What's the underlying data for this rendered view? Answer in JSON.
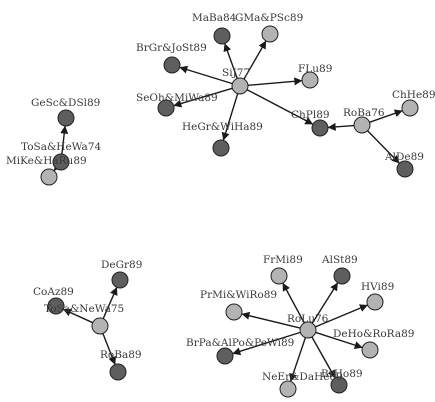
{
  "colors": {
    "light_node": "#b3b3b3",
    "dark_node": "#5e5e5e",
    "edge": "#1a1a1a",
    "label": "#3a3a3a",
    "background": "#ffffff"
  },
  "nodes": [
    {
      "id": "n1",
      "label": "SiJ77",
      "shade": "light"
    },
    {
      "id": "n2",
      "label": "MaBa84",
      "shade": "dark"
    },
    {
      "id": "n3",
      "label": "GMa&PSc89",
      "shade": "light"
    },
    {
      "id": "n4",
      "label": "BrGr&JoSt89",
      "shade": "dark"
    },
    {
      "id": "n5",
      "label": "SeOh&MiWa89",
      "shade": "dark"
    },
    {
      "id": "n6",
      "label": "HeGr&WiHa89",
      "shade": "dark"
    },
    {
      "id": "n7",
      "label": "FLu89",
      "shade": "light"
    },
    {
      "id": "n8",
      "label": "ChPl89",
      "shade": "dark"
    },
    {
      "id": "n9",
      "label": "RoBa76",
      "shade": "light"
    },
    {
      "id": "n10",
      "label": "ChHe89",
      "shade": "light"
    },
    {
      "id": "n11",
      "label": "AlDe89",
      "shade": "dark"
    },
    {
      "id": "n12",
      "label": "GeSc&DSl89",
      "shade": "dark"
    },
    {
      "id": "n13",
      "label": "ToSa&HeWa74",
      "shade": "dark"
    },
    {
      "id": "n14",
      "label": "MiKe&HaRu89",
      "shade": "light"
    },
    {
      "id": "n15",
      "label": "DeGr89",
      "shade": "dark"
    },
    {
      "id": "n16",
      "label": "CoAz89",
      "shade": "dark"
    },
    {
      "id": "n17",
      "label": "ToSa&NeWa75",
      "shade": "light"
    },
    {
      "id": "n18",
      "label": "RoBa89",
      "shade": "dark"
    },
    {
      "id": "n19",
      "label": "FrMi89",
      "shade": "light"
    },
    {
      "id": "n20",
      "label": "AlSt89",
      "shade": "dark"
    },
    {
      "id": "n21",
      "label": "HVi89",
      "shade": "light"
    },
    {
      "id": "n22",
      "label": "PrMi&WiRo89",
      "shade": "light"
    },
    {
      "id": "n23",
      "label": "RoLu76",
      "shade": "light"
    },
    {
      "id": "n24",
      "label": "DeHo&RoRa89",
      "shade": "light"
    },
    {
      "id": "n25",
      "label": "BrPa&AlPo&PeWi89",
      "shade": "dark"
    },
    {
      "id": "n26",
      "label": "NeEr&DaHe89",
      "shade": "light"
    },
    {
      "id": "n27",
      "label": "BrHo89",
      "shade": "dark"
    }
  ],
  "edges": [
    {
      "from": "n1",
      "to": "n2"
    },
    {
      "from": "n1",
      "to": "n3"
    },
    {
      "from": "n1",
      "to": "n4"
    },
    {
      "from": "n1",
      "to": "n5"
    },
    {
      "from": "n1",
      "to": "n6"
    },
    {
      "from": "n1",
      "to": "n7"
    },
    {
      "from": "n1",
      "to": "n8"
    },
    {
      "from": "n9",
      "to": "n8"
    },
    {
      "from": "n9",
      "to": "n10"
    },
    {
      "from": "n9",
      "to": "n11"
    },
    {
      "from": "n13",
      "to": "n12"
    },
    {
      "from": "n13",
      "to": "n14"
    },
    {
      "from": "n17",
      "to": "n15"
    },
    {
      "from": "n17",
      "to": "n16"
    },
    {
      "from": "n17",
      "to": "n18"
    },
    {
      "from": "n23",
      "to": "n19"
    },
    {
      "from": "n23",
      "to": "n20"
    },
    {
      "from": "n23",
      "to": "n21"
    },
    {
      "from": "n23",
      "to": "n22"
    },
    {
      "from": "n23",
      "to": "n24"
    },
    {
      "from": "n23",
      "to": "n25"
    },
    {
      "from": "n23",
      "to": "n26"
    },
    {
      "from": "n23",
      "to": "n27"
    }
  ]
}
